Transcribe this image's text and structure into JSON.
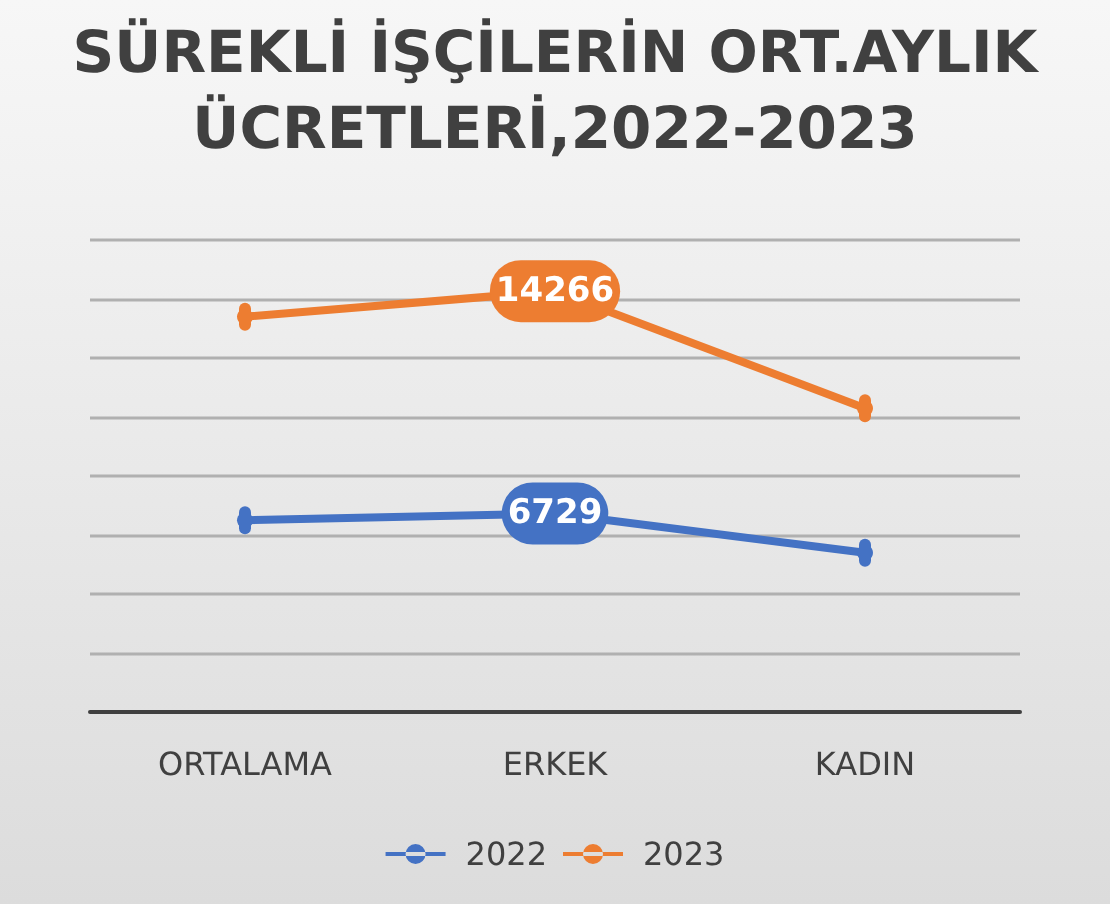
{
  "chart_data": {
    "type": "line",
    "title": "SÜREKLİ İŞÇİLERİN ORT.AYLIK ÜCRETLERİ,2022-2023",
    "categories": [
      "ORTALAMA",
      "ERKEK",
      "KADIN"
    ],
    "series": [
      {
        "name": "2022",
        "color": "#4472c4",
        "values": [
          6500,
          6729,
          5400
        ],
        "value_labels": [
          null,
          "6729",
          null
        ]
      },
      {
        "name": "2023",
        "color": "#ed7d31",
        "values": [
          13400,
          14266,
          10300
        ],
        "value_labels": [
          null,
          "14266",
          null
        ]
      }
    ],
    "ylim": [
      0,
      16000
    ],
    "yticks": [
      0,
      2000,
      4000,
      6000,
      8000,
      10000,
      12000,
      14000,
      16000
    ],
    "tick_labels": "x",
    "grid": "y",
    "legend": "bottom",
    "marker": "circle",
    "line_style": "solid"
  }
}
